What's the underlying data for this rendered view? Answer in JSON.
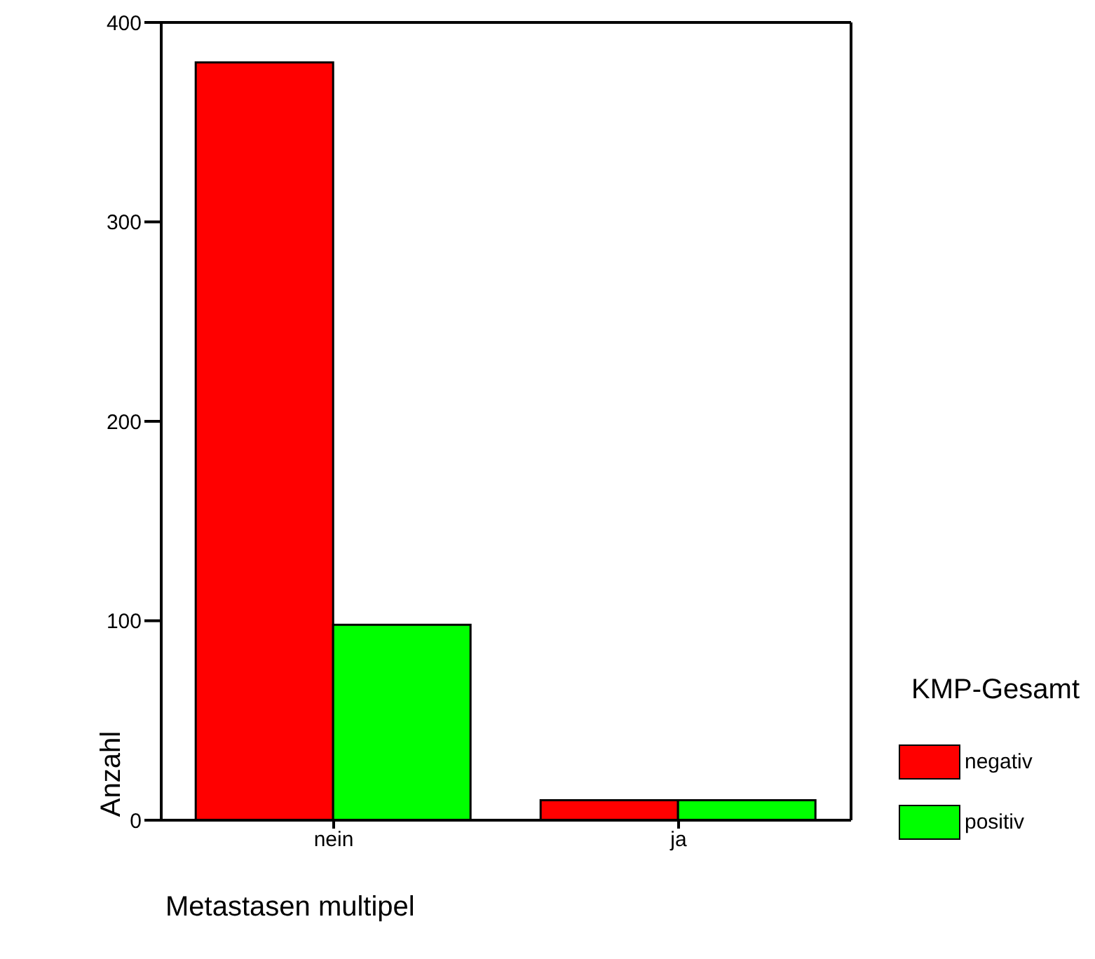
{
  "chart_data": {
    "type": "bar",
    "xlabel": "Metastasen multipel",
    "ylabel": "Anzahl",
    "legend_title": "KMP-Gesamt",
    "categories": [
      "nein",
      "ja"
    ],
    "series": [
      {
        "name": "negativ",
        "color": "#ff0000",
        "values": [
          380,
          10
        ]
      },
      {
        "name": "positiv",
        "color": "#00ff00",
        "values": [
          98,
          10
        ]
      }
    ],
    "ylim": [
      0,
      400
    ],
    "yticks": [
      0,
      100,
      200,
      300,
      400
    ],
    "grid": false,
    "legend": "right"
  }
}
